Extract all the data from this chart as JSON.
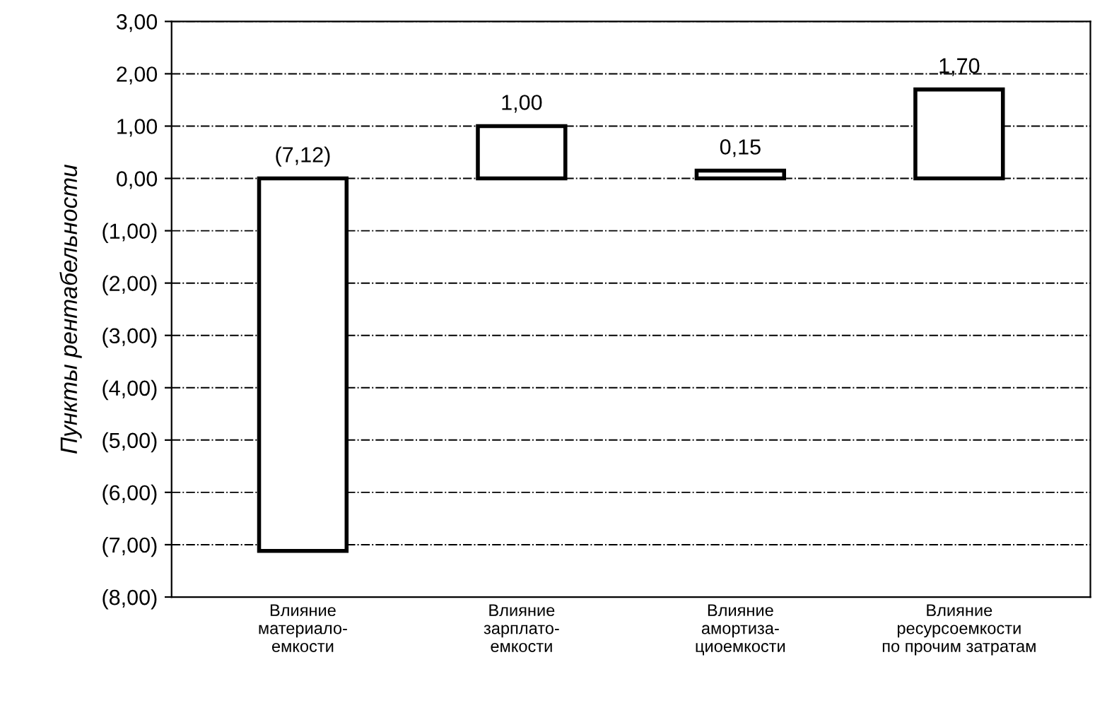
{
  "chart_data": {
    "type": "bar",
    "ylabel": "Пункты рентабельности",
    "categories": [
      "Влияние\nматериало-\nемкости",
      "Влияние\nзарплато-\nемкости",
      "Влияние\nамортиза-\nциоемкости",
      "Влияние\nресурсоемкости\nпо прочим затратам"
    ],
    "values": [
      -7.12,
      1.0,
      0.15,
      1.7
    ],
    "value_labels": [
      "(7,12)",
      "1,00",
      "0,15",
      "1,70"
    ],
    "color": "#ffffff",
    "ylim": [
      -8,
      3
    ],
    "yticks": [
      {
        "value": 3,
        "label": "3,00"
      },
      {
        "value": 2,
        "label": "2,00"
      },
      {
        "value": 1,
        "label": "1,00"
      },
      {
        "value": 0,
        "label": "0,00"
      },
      {
        "value": -1,
        "label": "(1,00)"
      },
      {
        "value": -2,
        "label": "(2,00)"
      },
      {
        "value": -3,
        "label": "(3,00)"
      },
      {
        "value": -4,
        "label": "(4,00)"
      },
      {
        "value": -5,
        "label": "(5,00)"
      },
      {
        "value": -6,
        "label": "(6,00)"
      },
      {
        "value": -7,
        "label": "(7,00)"
      },
      {
        "value": -8,
        "label": "(8,00)"
      }
    ],
    "grid": "y"
  }
}
